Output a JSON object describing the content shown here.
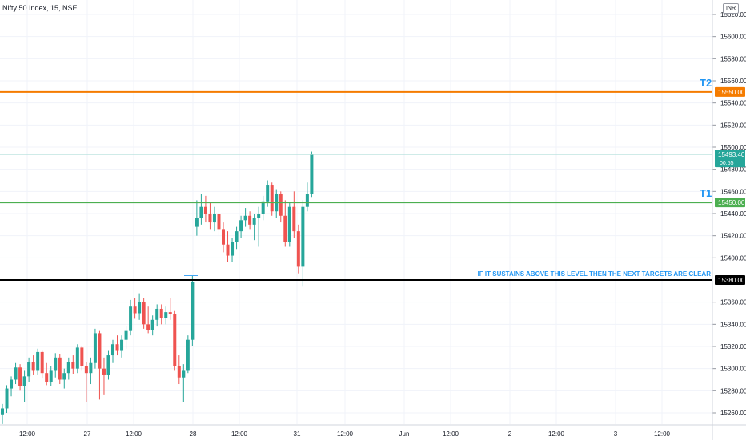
{
  "header": {
    "symbol": "Nifty 50 Index, 15, NSE",
    "currency": "INR"
  },
  "chart_data": {
    "type": "candlestick",
    "y_ticks": [
      "15620.00",
      "15600.00",
      "15580.00",
      "15560.00",
      "15540.00",
      "15520.00",
      "15500.00",
      "15480.00",
      "15460.00",
      "15440.00",
      "15420.00",
      "15400.00",
      "15360.00",
      "15340.00",
      "15320.00",
      "15300.00",
      "15280.00",
      "15260.00"
    ],
    "ylim": [
      15252,
      15630
    ],
    "x_ticks": [
      "12:00",
      "27",
      "12:00",
      "28",
      "12:00",
      "31",
      "12:00",
      "Jun",
      "12:00",
      "2",
      "12:00",
      "3",
      "12:00"
    ],
    "price_label": {
      "value": "15493.40",
      "countdown": "00:55"
    },
    "levels": [
      {
        "name": "T2",
        "value": 15550,
        "label": "15550.00",
        "color": "#f57c00"
      },
      {
        "name": "T1",
        "value": 15450,
        "label": "15450.00",
        "color": "#4caf50"
      },
      {
        "name": "",
        "value": 15380,
        "label": "15380.00",
        "color": "#000000"
      }
    ],
    "annotation": "IF IT SUSTAINS ABOVE THIS LEVEL THEN THE NEXT TARGETS ARE CLEAR",
    "last_price": 15493.4,
    "colors": {
      "up": "#26a69a",
      "down": "#ef5350",
      "grid": "#f0f3fa",
      "axis_text": "#131722",
      "annotation": "#2196f3"
    },
    "candles": [
      {
        "o": 15258,
        "h": 15268,
        "l": 15250,
        "c": 15264
      },
      {
        "o": 15264,
        "h": 15285,
        "l": 15260,
        "c": 15282
      },
      {
        "o": 15282,
        "h": 15293,
        "l": 15275,
        "c": 15290
      },
      {
        "o": 15290,
        "h": 15305,
        "l": 15286,
        "c": 15301
      },
      {
        "o": 15301,
        "h": 15304,
        "l": 15280,
        "c": 15284
      },
      {
        "o": 15284,
        "h": 15298,
        "l": 15270,
        "c": 15293
      },
      {
        "o": 15293,
        "h": 15310,
        "l": 15288,
        "c": 15306
      },
      {
        "o": 15306,
        "h": 15312,
        "l": 15294,
        "c": 15298
      },
      {
        "o": 15298,
        "h": 15318,
        "l": 15294,
        "c": 15315
      },
      {
        "o": 15315,
        "h": 15316,
        "l": 15291,
        "c": 15296
      },
      {
        "o": 15296,
        "h": 15305,
        "l": 15285,
        "c": 15288
      },
      {
        "o": 15288,
        "h": 15302,
        "l": 15284,
        "c": 15298
      },
      {
        "o": 15298,
        "h": 15314,
        "l": 15292,
        "c": 15310
      },
      {
        "o": 15310,
        "h": 15313,
        "l": 15286,
        "c": 15290
      },
      {
        "o": 15290,
        "h": 15300,
        "l": 15282,
        "c": 15296
      },
      {
        "o": 15296,
        "h": 15310,
        "l": 15290,
        "c": 15306
      },
      {
        "o": 15306,
        "h": 15312,
        "l": 15295,
        "c": 15300
      },
      {
        "o": 15300,
        "h": 15322,
        "l": 15296,
        "c": 15319
      },
      {
        "o": 15319,
        "h": 15320,
        "l": 15298,
        "c": 15302
      },
      {
        "o": 15302,
        "h": 15306,
        "l": 15270,
        "c": 15296
      },
      {
        "o": 15296,
        "h": 15310,
        "l": 15286,
        "c": 15305
      },
      {
        "o": 15305,
        "h": 15336,
        "l": 15300,
        "c": 15332
      },
      {
        "o": 15332,
        "h": 15334,
        "l": 15272,
        "c": 15300
      },
      {
        "o": 15300,
        "h": 15310,
        "l": 15276,
        "c": 15294
      },
      {
        "o": 15294,
        "h": 15316,
        "l": 15290,
        "c": 15312
      },
      {
        "o": 15312,
        "h": 15326,
        "l": 15305,
        "c": 15322
      },
      {
        "o": 15322,
        "h": 15330,
        "l": 15312,
        "c": 15316
      },
      {
        "o": 15316,
        "h": 15330,
        "l": 15310,
        "c": 15326
      },
      {
        "o": 15326,
        "h": 15338,
        "l": 15318,
        "c": 15334
      },
      {
        "o": 15334,
        "h": 15362,
        "l": 15330,
        "c": 15356
      },
      {
        "o": 15356,
        "h": 15364,
        "l": 15345,
        "c": 15350
      },
      {
        "o": 15350,
        "h": 15368,
        "l": 15344,
        "c": 15360
      },
      {
        "o": 15360,
        "h": 15364,
        "l": 15336,
        "c": 15340
      },
      {
        "o": 15340,
        "h": 15356,
        "l": 15332,
        "c": 15335
      },
      {
        "o": 15335,
        "h": 15348,
        "l": 15330,
        "c": 15344
      },
      {
        "o": 15344,
        "h": 15358,
        "l": 15338,
        "c": 15354
      },
      {
        "o": 15354,
        "h": 15358,
        "l": 15340,
        "c": 15346
      },
      {
        "o": 15346,
        "h": 15356,
        "l": 15340,
        "c": 15351
      },
      {
        "o": 15351,
        "h": 15364,
        "l": 15344,
        "c": 15349
      },
      {
        "o": 15349,
        "h": 15352,
        "l": 15298,
        "c": 15302
      },
      {
        "o": 15302,
        "h": 15312,
        "l": 15286,
        "c": 15292
      },
      {
        "o": 15292,
        "h": 15304,
        "l": 15270,
        "c": 15298
      },
      {
        "o": 15298,
        "h": 15330,
        "l": 15296,
        "c": 15326
      },
      {
        "o": 15326,
        "h": 15384,
        "l": 15320,
        "c": 15378
      },
      {
        "o": 15428,
        "h": 15452,
        "l": 15420,
        "c": 15436
      },
      {
        "o": 15436,
        "h": 15458,
        "l": 15430,
        "c": 15446
      },
      {
        "o": 15446,
        "h": 15456,
        "l": 15432,
        "c": 15440
      },
      {
        "o": 15440,
        "h": 15450,
        "l": 15426,
        "c": 15432
      },
      {
        "o": 15432,
        "h": 15446,
        "l": 15424,
        "c": 15440
      },
      {
        "o": 15440,
        "h": 15444,
        "l": 15420,
        "c": 15426
      },
      {
        "o": 15426,
        "h": 15432,
        "l": 15405,
        "c": 15412
      },
      {
        "o": 15412,
        "h": 15424,
        "l": 15396,
        "c": 15402
      },
      {
        "o": 15402,
        "h": 15418,
        "l": 15396,
        "c": 15414
      },
      {
        "o": 15414,
        "h": 15428,
        "l": 15408,
        "c": 15424
      },
      {
        "o": 15424,
        "h": 15438,
        "l": 15418,
        "c": 15434
      },
      {
        "o": 15434,
        "h": 15445,
        "l": 15428,
        "c": 15438
      },
      {
        "o": 15438,
        "h": 15442,
        "l": 15426,
        "c": 15430
      },
      {
        "o": 15430,
        "h": 15440,
        "l": 15416,
        "c": 15436
      },
      {
        "o": 15436,
        "h": 15446,
        "l": 15410,
        "c": 15440
      },
      {
        "o": 15440,
        "h": 15456,
        "l": 15434,
        "c": 15451
      },
      {
        "o": 15451,
        "h": 15470,
        "l": 15446,
        "c": 15466
      },
      {
        "o": 15466,
        "h": 15468,
        "l": 15438,
        "c": 15442
      },
      {
        "o": 15442,
        "h": 15462,
        "l": 15436,
        "c": 15458
      },
      {
        "o": 15458,
        "h": 15460,
        "l": 15432,
        "c": 15438
      },
      {
        "o": 15438,
        "h": 15452,
        "l": 15410,
        "c": 15414
      },
      {
        "o": 15414,
        "h": 15450,
        "l": 15410,
        "c": 15446
      },
      {
        "o": 15446,
        "h": 15460,
        "l": 15418,
        "c": 15424
      },
      {
        "o": 15424,
        "h": 15430,
        "l": 15386,
        "c": 15392
      },
      {
        "o": 15392,
        "h": 15452,
        "l": 15374,
        "c": 15446
      },
      {
        "o": 15446,
        "h": 15468,
        "l": 15442,
        "c": 15458
      },
      {
        "o": 15458,
        "h": 15496,
        "l": 15455,
        "c": 15493.4
      }
    ]
  }
}
